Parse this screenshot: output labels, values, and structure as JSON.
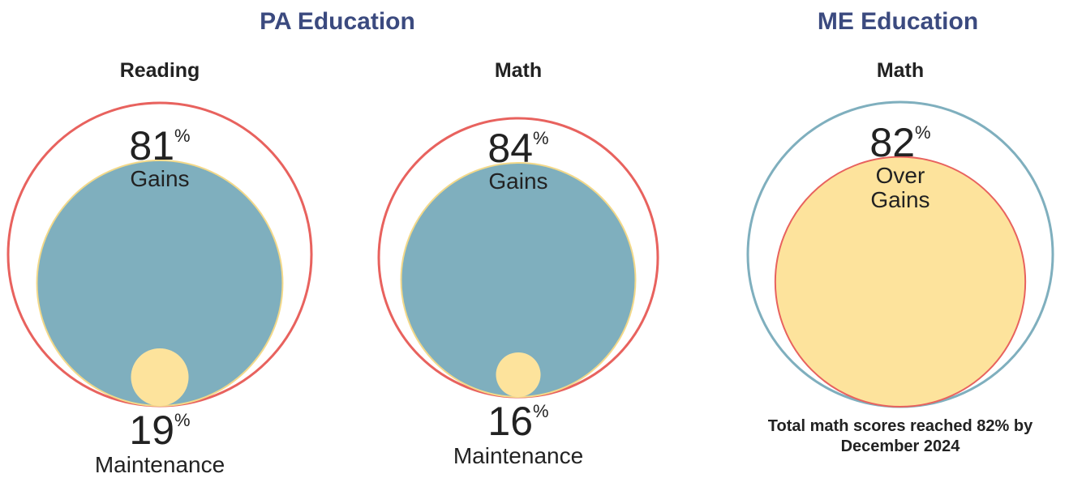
{
  "groups": [
    {
      "title": "PA Education"
    },
    {
      "title": "ME Education"
    }
  ],
  "chart_data": [
    {
      "type": "circles",
      "title": "Reading",
      "unit": "%",
      "ring_color": "#e8625e",
      "series": [
        {
          "name": "Gains",
          "value": 81,
          "color": "#7fafbe",
          "stroke": "#f3d98a"
        },
        {
          "name": "Maintenance",
          "value": 19,
          "color": "#fde39c"
        }
      ]
    },
    {
      "type": "circles",
      "title": "Math",
      "unit": "%",
      "ring_color": "#e8625e",
      "series": [
        {
          "name": "Gains",
          "value": 84,
          "color": "#7fafbe",
          "stroke": "#f3d98a"
        },
        {
          "name": "Maintenance",
          "value": 16,
          "color": "#fde39c"
        }
      ]
    },
    {
      "type": "circles",
      "title": "Math",
      "unit": "%",
      "ring_color": "#7fafbe",
      "series": [
        {
          "name": "Over Gains",
          "value": 82,
          "color": "#fde39c",
          "stroke": "#e8625e"
        }
      ],
      "annotation": "Total math scores reached 82% by December 2024"
    }
  ]
}
